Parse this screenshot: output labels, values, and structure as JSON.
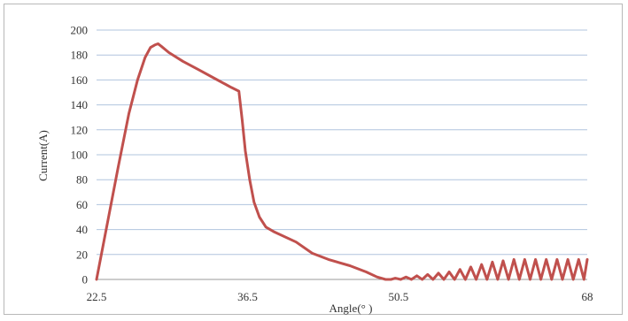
{
  "chart_data": {
    "type": "line",
    "title": "",
    "xlabel": "Angle(° )",
    "ylabel": "Current(A)",
    "xlim": [
      22.5,
      68
    ],
    "ylim": [
      0,
      200
    ],
    "x_ticks": [
      "22.5",
      "36.5",
      "50.5",
      "68"
    ],
    "y_ticks": [
      0,
      20,
      40,
      60,
      80,
      100,
      120,
      140,
      160,
      180,
      200
    ],
    "grid": "horizontal",
    "series": [
      {
        "color": "#c0504d",
        "x": [
          22.5,
          23.5,
          24.5,
          25.5,
          26.3,
          27.0,
          27.5,
          27.9,
          28.2,
          28.5,
          29.2,
          30.5,
          32.0,
          33.5,
          35.0,
          35.7,
          36.0,
          36.3,
          36.7,
          37.1,
          37.6,
          38.2,
          39.0,
          41.0,
          42.5,
          44.0,
          46.0,
          47.5,
          48.5,
          49.3,
          49.8,
          50.2,
          50.7,
          51.2,
          51.7,
          52.2,
          52.7,
          53.2,
          53.7,
          54.2,
          54.7,
          55.2,
          55.7,
          56.2,
          56.7,
          57.2,
          57.7,
          58.2,
          58.7,
          59.2,
          59.7,
          60.2,
          60.7,
          61.2,
          61.7,
          62.2,
          62.7,
          63.2,
          63.7,
          64.2,
          64.7,
          65.2,
          65.7,
          66.2,
          66.7,
          67.2,
          67.7,
          68.0
        ],
        "y": [
          0,
          45,
          90,
          133,
          160,
          178,
          186,
          188,
          189,
          187,
          182,
          175,
          168,
          161,
          154,
          151,
          128,
          103,
          80,
          62,
          50,
          42,
          38,
          30,
          21,
          16,
          11,
          6,
          2,
          0,
          0,
          1,
          0,
          2,
          0,
          3,
          0,
          4,
          0,
          5,
          0,
          6,
          0,
          8,
          0,
          10,
          0,
          12,
          0,
          14,
          0,
          15,
          0,
          16,
          0,
          16,
          0,
          16,
          0,
          16,
          0,
          16,
          0,
          16,
          0,
          16,
          0,
          16
        ]
      }
    ]
  }
}
